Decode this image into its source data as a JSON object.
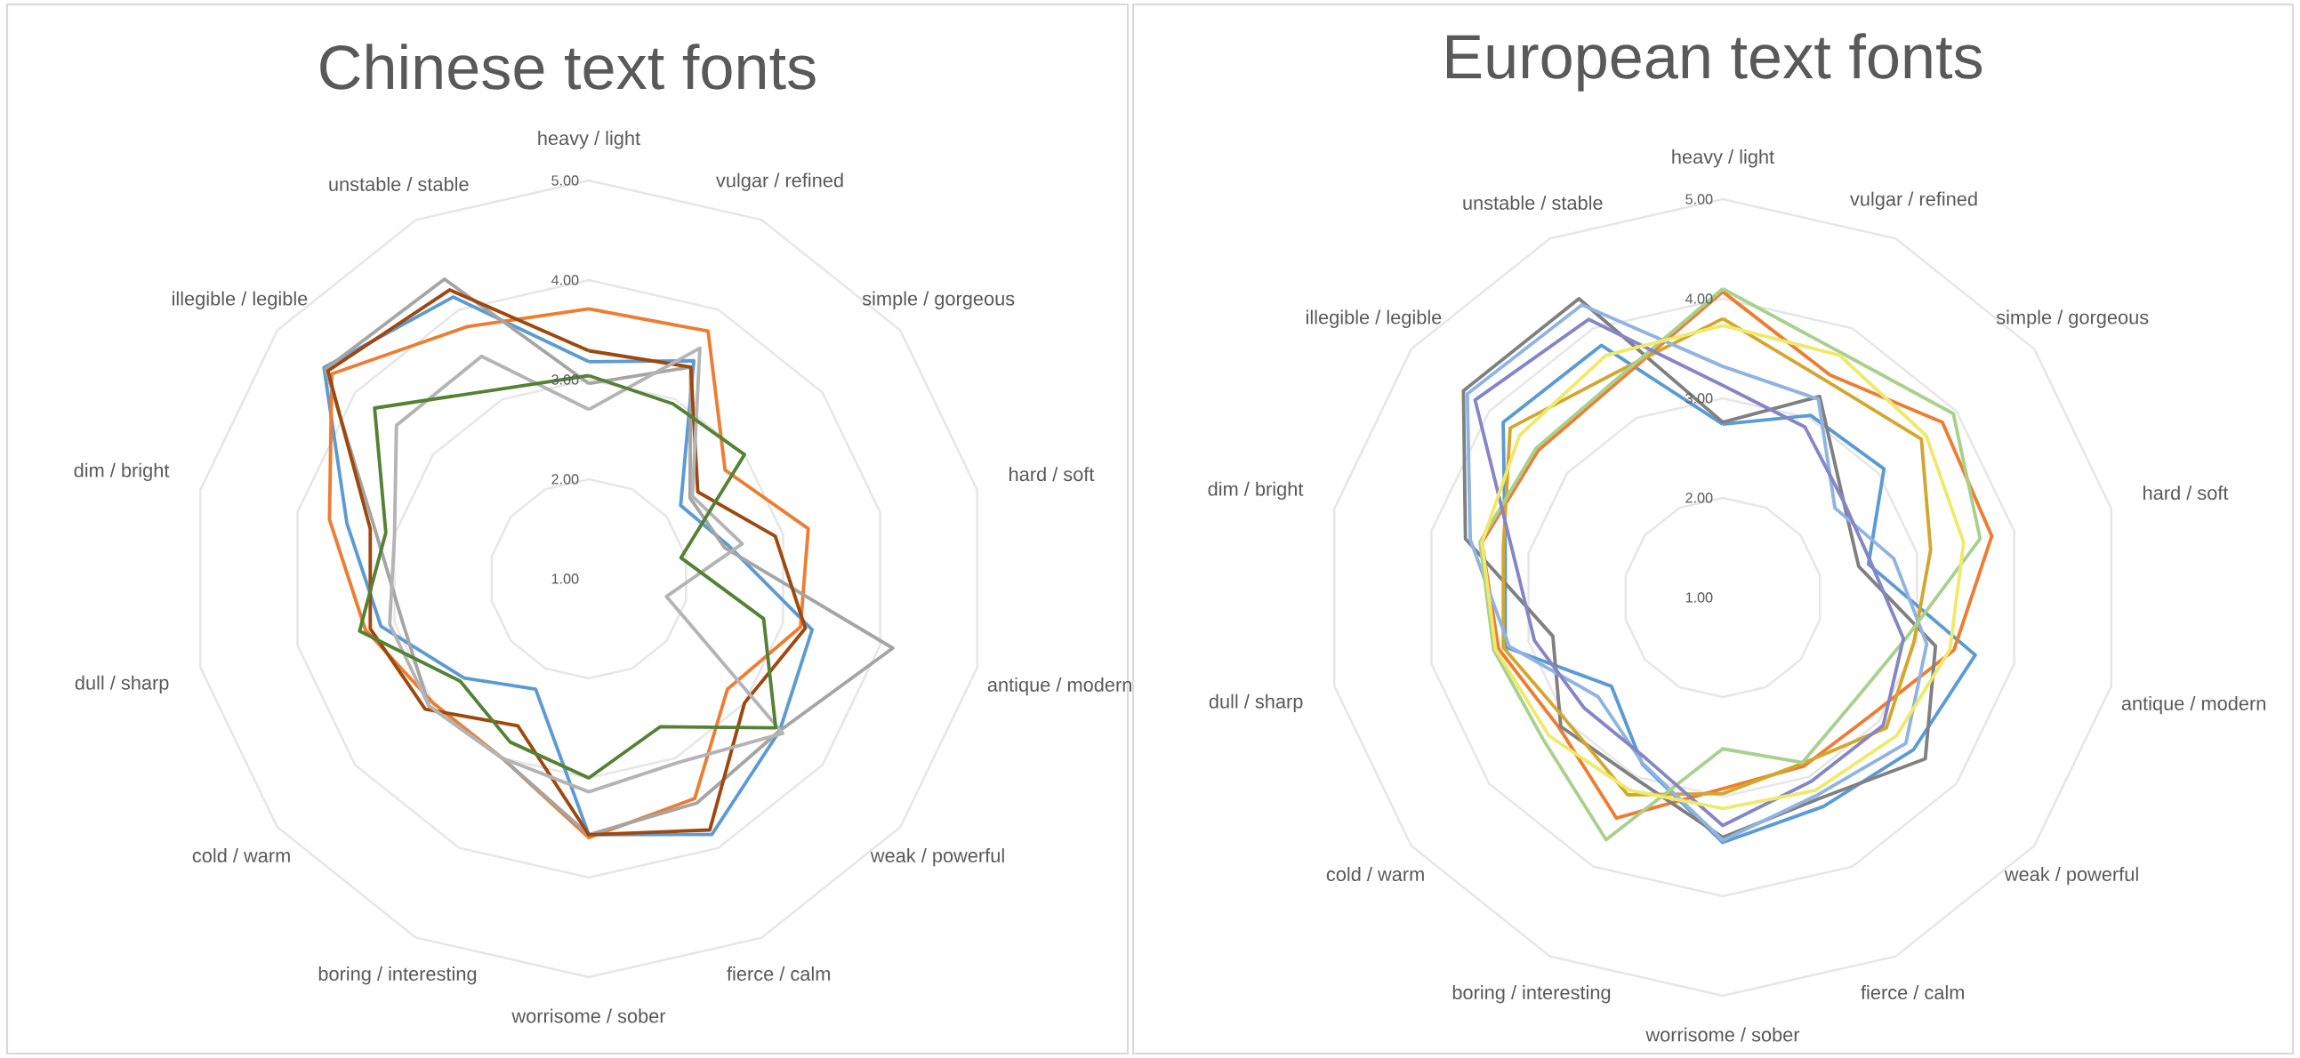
{
  "chart_data": [
    {
      "type": "radar",
      "title": "Chinese text fonts",
      "grid": true,
      "ylim": [
        1,
        5
      ],
      "yticks": [
        {
          "value": 1,
          "label": "1.00"
        },
        {
          "value": 2,
          "label": "2.00"
        },
        {
          "value": 3,
          "label": "3.00"
        },
        {
          "value": 4,
          "label": "4.00"
        },
        {
          "value": 5,
          "label": "5.00"
        }
      ],
      "categories": [
        "heavy / light",
        "vulgar / refined",
        "simple / gorgeous",
        "hard / soft",
        "antique / modern",
        "weak / powerful",
        "fierce / calm",
        "worrisome / sober",
        "boring / interesting",
        "cold / warm",
        "dull / sharp",
        "dim / bright",
        "illegible / legible",
        "unstable / stable"
      ],
      "series": [
        {
          "color": "#5b9bd5",
          "values": [
            3.18,
            3.43,
            2.18,
            2.45,
            3.3,
            3.45,
            3.85,
            3.57,
            2.23,
            2.6,
            3.14,
            3.49,
            4.4,
            4.14
          ]
        },
        {
          "color": "#ed7d31",
          "values": [
            3.71,
            3.76,
            2.75,
            3.26,
            3.18,
            2.78,
            3.45,
            3.6,
            3.0,
            3.0,
            3.3,
            3.67,
            4.3,
            3.81
          ]
        },
        {
          "color": "#a5a5a5",
          "values": [
            2.96,
            3.36,
            2.3,
            2.4,
            4.13,
            3.45,
            3.5,
            3.57,
            3.0,
            3.05,
            2.92,
            3.2,
            4.38,
            4.34
          ]
        },
        {
          "color": "#9e480e",
          "values": [
            3.29,
            3.36,
            2.4,
            2.92,
            3.23,
            3.0,
            3.8,
            3.57,
            2.64,
            3.1,
            3.25,
            3.25,
            4.35,
            4.22
          ]
        },
        {
          "color": "#b4b4b4",
          "values": [
            2.7,
            3.57,
            2.33,
            2.58,
            1.8,
            3.49,
            3.05,
            3.14,
            3.0,
            3.05,
            3.05,
            3.0,
            3.47,
            3.48
          ]
        },
        {
          "color": "#548235",
          "values": [
            3.04,
            2.95,
            3.0,
            1.95,
            2.8,
            3.4,
            2.65,
            3.0,
            2.82,
            2.65,
            3.36,
            3.09,
            3.75,
            3.11
          ]
        }
      ]
    },
    {
      "type": "radar",
      "title": "European text fonts",
      "grid": true,
      "ylim": [
        1,
        5
      ],
      "yticks": [
        {
          "value": 1,
          "label": "1.00"
        },
        {
          "value": 2,
          "label": "2.00"
        },
        {
          "value": 3,
          "label": "3.00"
        },
        {
          "value": 4,
          "label": "4.00"
        },
        {
          "value": 5,
          "label": "5.00"
        }
      ],
      "categories": [
        "heavy / light",
        "vulgar / refined",
        "simple / gorgeous",
        "hard / soft",
        "antique / modern",
        "weak / powerful",
        "fierce / calm",
        "worrisome / sober",
        "boring / interesting",
        "cold / warm",
        "dull / sharp",
        "dim / bright",
        "illegible / legible",
        "unstable / stable"
      ],
      "series": [
        {
          "color": "#5b9bd5",
          "values": [
            2.74,
            3.03,
            3.07,
            2.5,
            3.6,
            3.45,
            3.33,
            3.46,
            2.86,
            2.43,
            3.24,
            3.24,
            3.82,
            3.81
          ]
        },
        {
          "color": "#ed7d31",
          "values": [
            4.07,
            3.48,
            3.82,
            3.77,
            3.38,
            2.9,
            2.88,
            2.92,
            3.46,
            3.1,
            3.31,
            3.48,
            3.37,
            3.41
          ]
        },
        {
          "color": "#808080",
          "values": [
            2.76,
            3.24,
            2.55,
            2.4,
            3.19,
            3.6,
            3.24,
            3.41,
            3.02,
            3.08,
            2.75,
            3.65,
            4.33,
            4.33
          ]
        },
        {
          "color": "#d4a72c",
          "values": [
            3.8,
            3.41,
            3.55,
            3.14,
            2.97,
            3.1,
            2.85,
            2.97,
            3.2,
            3.0,
            3.26,
            3.26,
            3.73,
            3.5
          ]
        },
        {
          "color": "#8fb4e3",
          "values": [
            3.32,
            3.21,
            2.44,
            2.76,
            3.1,
            3.35,
            3.2,
            3.44,
            2.85,
            2.6,
            3.2,
            3.6,
            4.28,
            4.26
          ]
        },
        {
          "color": "#a9d18e",
          "values": [
            4.1,
            3.73,
            3.96,
            3.65,
            2.88,
            2.68,
            2.84,
            2.52,
            3.7,
            3.3,
            3.36,
            3.5,
            3.4,
            3.44
          ]
        },
        {
          "color": "#8585c8",
          "values": [
            3.13,
            2.9,
            2.55,
            2.53,
            2.86,
            3.06,
            3.05,
            3.29,
            2.79,
            2.78,
            2.94,
            3.17,
            4.18,
            4.1
          ]
        },
        {
          "color": "#eeea6b",
          "values": [
            3.73,
            3.7,
            3.61,
            3.48,
            3.34,
            3.23,
            3.15,
            3.12,
            3.15,
            3.23,
            3.34,
            3.48,
            3.61,
            3.7
          ]
        }
      ]
    }
  ]
}
